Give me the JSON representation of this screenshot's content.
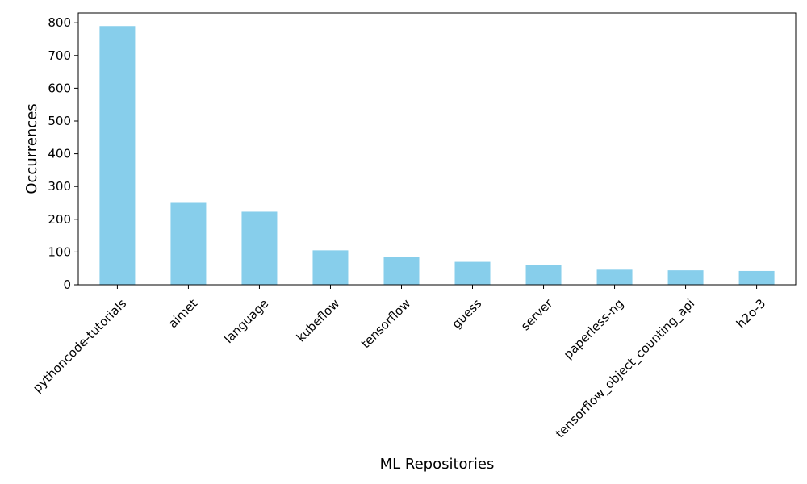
{
  "chart_data": {
    "type": "bar",
    "title": "",
    "xlabel": "ML Repositories",
    "ylabel": "Occurrences",
    "categories": [
      "pythoncode-tutorials",
      "aimet",
      "language",
      "kubeflow",
      "tensorflow",
      "guess",
      "server",
      "paperless-ng",
      "tensorflow_object_counting_api",
      "h2o-3"
    ],
    "values": [
      790,
      250,
      223,
      105,
      85,
      70,
      60,
      46,
      44,
      42
    ],
    "ylim": [
      0,
      830
    ],
    "yticks": [
      0,
      100,
      200,
      300,
      400,
      500,
      600,
      700,
      800
    ],
    "bar_color": "#87ceeb",
    "grid": false,
    "legend": "none"
  }
}
